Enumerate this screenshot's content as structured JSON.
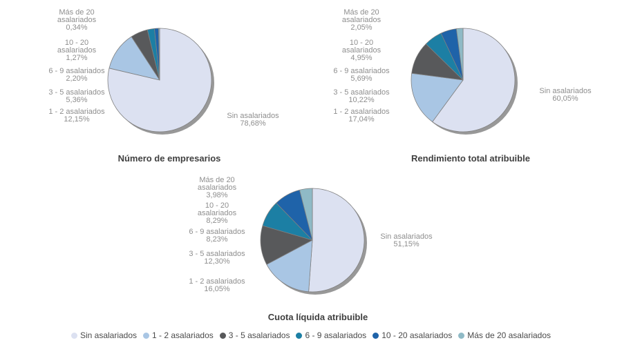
{
  "palette": {
    "series_colors": [
      "#dce1f1",
      "#a9c6e4",
      "#58595b",
      "#1c7fa4",
      "#1f63a9",
      "#8fbac6"
    ],
    "pie_shadow": "#989898",
    "slice_stroke": "#808080",
    "label_text": "#8e8e8e",
    "title_text": "#404040",
    "legend_text": "#4a4a4a",
    "background": "#ffffff"
  },
  "chart_data": [
    {
      "type": "pie",
      "title": "Número de empresarios",
      "categories": [
        "Sin asalariados",
        "1 - 2 asalariados",
        "3 - 5 asalariados",
        "6 - 9 asalariados",
        "10 - 20 asalariados",
        "Más de 20 asalariados"
      ],
      "values": [
        78.68,
        12.15,
        5.36,
        2.2,
        1.27,
        0.34
      ],
      "start_angle_deg": 0,
      "direction": "clockwise",
      "legend_position": "shared-bottom",
      "labels": {
        "sin": "Sin asalariados\n78,68%",
        "a1_2": "1 - 2 asalariados\n12,15%",
        "a3_5": "3 - 5 asalariados\n5,36%",
        "a6_9": "6 - 9 asalariados\n2,20%",
        "a10_20": "10 - 20\nasalariados\n1,27%",
        "mas20": "Más de 20\nasalariados\n0,34%"
      }
    },
    {
      "type": "pie",
      "title": "Rendimiento total atribuible",
      "categories": [
        "Sin asalariados",
        "1 - 2 asalariados",
        "3 - 5 asalariados",
        "6 - 9 asalariados",
        "10 - 20 asalariados",
        "Más de 20 asalariados"
      ],
      "values": [
        60.05,
        17.04,
        10.22,
        5.69,
        4.95,
        2.05
      ],
      "start_angle_deg": 0,
      "direction": "clockwise",
      "legend_position": "shared-bottom",
      "labels": {
        "sin": "Sin asalariados\n60,05%",
        "a1_2": "1 - 2 asalariados\n17,04%",
        "a3_5": "3 - 5 asalariados\n10,22%",
        "a6_9": "6 - 9 asalariados\n5,69%",
        "a10_20": "10 - 20\nasalariados\n4,95%",
        "mas20": "Más de 20\nasalariados\n2,05%"
      }
    },
    {
      "type": "pie",
      "title": "Cuota líquida atribuible",
      "categories": [
        "Sin asalariados",
        "1 - 2 asalariados",
        "3 - 5 asalariados",
        "6 - 9 asalariados",
        "10 - 20 asalariados",
        "Más de 20 asalariados"
      ],
      "values": [
        51.15,
        16.05,
        12.3,
        8.23,
        8.29,
        3.98
      ],
      "start_angle_deg": 0,
      "direction": "clockwise",
      "legend_position": "shared-bottom",
      "labels": {
        "sin": "Sin asalariados\n51,15%",
        "a1_2": "1 - 2 asalariados\n16,05%",
        "a3_5": "3 - 5 asalariados\n12,30%",
        "a6_9": "6 - 9 asalariados\n8,23%",
        "a10_20": "10 - 20\nasalariados\n8,29%",
        "mas20": "Más de 20\nasalariados\n3,98%"
      }
    }
  ],
  "legend": {
    "items": [
      {
        "label": "Sin asalariados",
        "color": "#dce1f1"
      },
      {
        "label": "1 - 2 asalariados",
        "color": "#a9c6e4"
      },
      {
        "label": "3 - 5 asalariados",
        "color": "#58595b"
      },
      {
        "label": "6 - 9 asalariados",
        "color": "#1c7fa4"
      },
      {
        "label": "10 - 20 asalariados",
        "color": "#1f63a9"
      },
      {
        "label": "Más de 20 asalariados",
        "color": "#8fbac6"
      }
    ]
  }
}
